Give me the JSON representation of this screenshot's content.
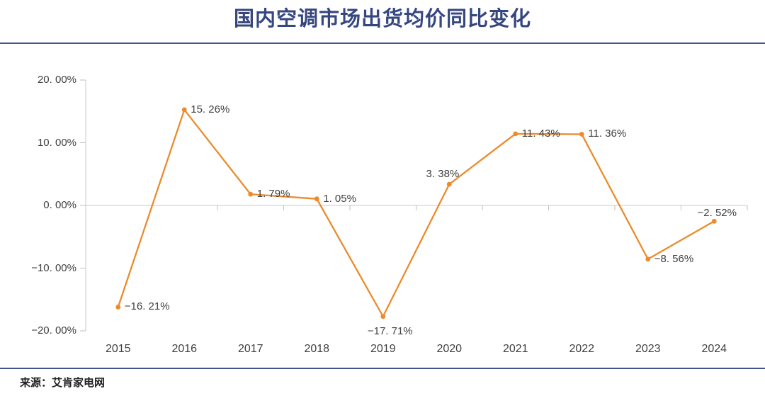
{
  "page": {
    "title": "国内空调市场出货均价同比变化",
    "source": "来源：艾肯家电网"
  },
  "colors": {
    "title_text": "#36477F",
    "divider": "#42568D",
    "series_line": "#EB8B2D",
    "data_label_text": "#404040",
    "axis_text": "#404040",
    "axis_line": "#C9C9C9",
    "tick": "#BFBFBF",
    "source_text": "#222222",
    "background": "#FFFFFF"
  },
  "chart_data": {
    "type": "line",
    "title": "国内空调市场出货均价同比变化",
    "categories": [
      "2015",
      "2016",
      "2017",
      "2018",
      "2019",
      "2020",
      "2021",
      "2022",
      "2023",
      "2024"
    ],
    "values": [
      -16.21,
      15.26,
      1.79,
      1.05,
      -17.71,
      3.38,
      11.43,
      11.36,
      -8.56,
      -2.52
    ],
    "point_labels": [
      "−16. 21%",
      "15. 26%",
      "1. 79%",
      "1. 05%",
      "−17. 71%",
      "3. 38%",
      "11. 43%",
      "11. 36%",
      "−8. 56%",
      "−2. 52%"
    ],
    "label_positions": [
      "right",
      "right",
      "right",
      "right",
      "below",
      "left-above",
      "right",
      "right",
      "right",
      "above"
    ],
    "y_ticks": [
      {
        "value": 20,
        "label": "20. 00%"
      },
      {
        "value": 10,
        "label": "10. 00%"
      },
      {
        "value": 0,
        "label": "0. 00%"
      },
      {
        "value": -10,
        "label": "−10. 00%"
      },
      {
        "value": -20,
        "label": "−20. 00%"
      }
    ],
    "ylim": [
      -20,
      20
    ],
    "xlabel": "",
    "ylabel": "",
    "legend": "none",
    "grid": "zero-line-only",
    "marker": "circle",
    "source": "来源：艾肯家电网"
  }
}
